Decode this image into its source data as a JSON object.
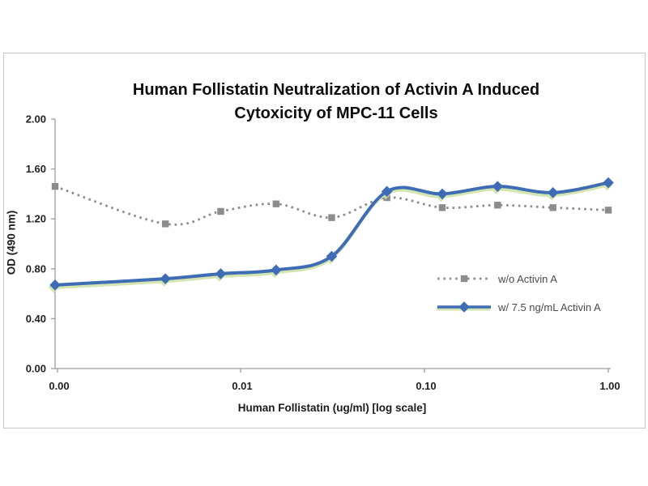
{
  "figure": {
    "title_lines": [
      "Human Follistatin Neutralization of Activin A Induced",
      "Cytoxicity of MPC-11 Cells"
    ]
  },
  "chart_data": {
    "type": "line",
    "title": "Human Follistatin Neutralization of Activin A Induced Cytoxicity of MPC-11 Cells",
    "xlabel": "Human Follistatin (ug/ml) [log scale]",
    "ylabel": "OD (490 nm)",
    "x_scale": "log",
    "grid": false,
    "legend_position": "inside-right",
    "xlim_labels": [
      "0.00",
      "1.00"
    ],
    "ylim": [
      0,
      2.0
    ],
    "x_ticks": [
      {
        "value": 0,
        "label": "0.00"
      },
      {
        "value": 0.01,
        "label": "0.01"
      },
      {
        "value": 0.1,
        "label": "0.10"
      },
      {
        "value": 1,
        "label": "1.00"
      }
    ],
    "y_ticks": [
      {
        "value": 0.0,
        "label": "0.00"
      },
      {
        "value": 0.4,
        "label": "0.40"
      },
      {
        "value": 0.8,
        "label": "0.80"
      },
      {
        "value": 1.2,
        "label": "1.20"
      },
      {
        "value": 1.6,
        "label": "1.60"
      },
      {
        "value": 2.0,
        "label": "2.00"
      }
    ],
    "x": [
      0,
      0.0039,
      0.0078,
      0.0156,
      0.0313,
      0.0625,
      0.125,
      0.25,
      0.5,
      1.0
    ],
    "series": [
      {
        "name": "w/o Activin A",
        "marker": "square",
        "line_style": "dotted",
        "color": "#8c8c8c",
        "values": [
          1.46,
          1.16,
          1.26,
          1.32,
          1.21,
          1.37,
          1.29,
          1.31,
          1.29,
          1.27
        ]
      },
      {
        "name": "w/ 7.5 ng/mL Activin A",
        "marker": "diamond",
        "line_style": "solid",
        "color": "#3e6cb5",
        "glow_color": "#cfe3a8",
        "values": [
          0.67,
          0.72,
          0.76,
          0.79,
          0.9,
          1.42,
          1.4,
          1.46,
          1.41,
          1.49
        ]
      }
    ],
    "axis_color": "#9d9d9d",
    "tick_label_color": "#222222"
  }
}
